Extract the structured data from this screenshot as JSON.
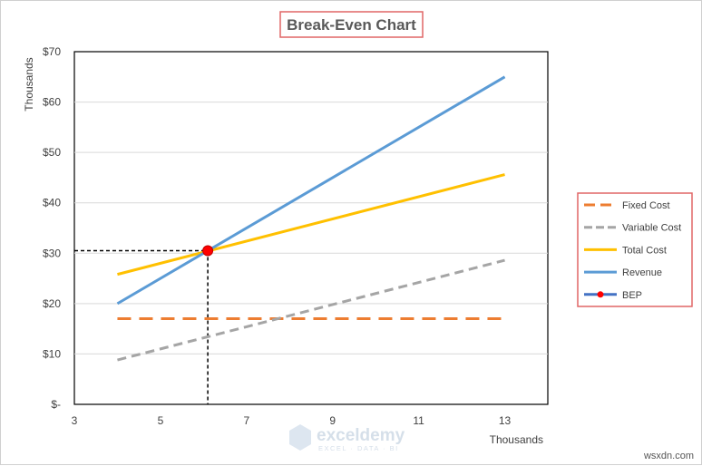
{
  "chart_data": {
    "type": "line",
    "title": "Break-Even Chart",
    "xlabel": "Thousands",
    "ylabel": "Thousands",
    "xlim": [
      3,
      14
    ],
    "ylim": [
      0,
      70
    ],
    "x_ticks": [
      3,
      5,
      7,
      9,
      11,
      13
    ],
    "x_tick_labels": [
      "3",
      "5",
      "7",
      "9",
      "11",
      "13"
    ],
    "y_ticks": [
      0,
      10,
      20,
      30,
      40,
      50,
      60,
      70
    ],
    "y_tick_labels": [
      "$-",
      "$10",
      "$20",
      "$30",
      "$40",
      "$50",
      "$60",
      "$70"
    ],
    "grid": {
      "horizontal": true,
      "vertical": false
    },
    "legend_position": "right",
    "series": [
      {
        "name": "Fixed Cost",
        "color": "#ED7D31",
        "dash": "long-dash",
        "marker": "none",
        "points": [
          [
            4,
            17
          ],
          [
            13,
            17
          ]
        ]
      },
      {
        "name": "Variable Cost",
        "color": "#A5A5A5",
        "dash": "dash",
        "marker": "none",
        "points": [
          [
            4,
            8.8
          ],
          [
            13,
            28.6
          ]
        ]
      },
      {
        "name": "Total Cost",
        "color": "#FFC000",
        "dash": "solid",
        "marker": "none",
        "points": [
          [
            4,
            25.8
          ],
          [
            13,
            45.6
          ]
        ]
      },
      {
        "name": "Revenue",
        "color": "#5B9BD5",
        "dash": "solid",
        "marker": "none",
        "points": [
          [
            4,
            20
          ],
          [
            13,
            65
          ]
        ]
      },
      {
        "name": "BEP",
        "color": "#FF0000",
        "dash": "solid",
        "marker": "circle",
        "points": [
          [
            6.1,
            30.5
          ]
        ]
      }
    ],
    "bep": {
      "x": 6.1,
      "y": 30.5,
      "guide_color": "#000000"
    }
  },
  "watermark": {
    "name": "exceldemy",
    "tagline": "EXCEL · DATA · BI"
  },
  "footer": {
    "site": "wsxdn.com"
  }
}
